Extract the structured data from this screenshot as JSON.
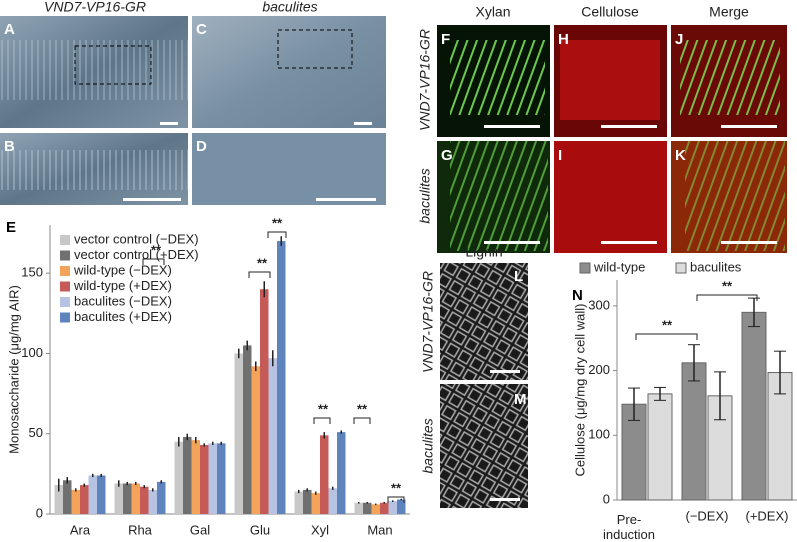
{
  "panels": {
    "left_headers": [
      "VND7-VP16-GR",
      "baculites"
    ],
    "left_letters": [
      "A",
      "B",
      "C",
      "D"
    ],
    "right_headers": [
      "Xylan",
      "Cellulose",
      "Merge"
    ],
    "right_letters": [
      "F",
      "H",
      "J",
      "G",
      "I",
      "K"
    ],
    "right_rows": [
      "VND7-VP16-GR",
      "baculites"
    ],
    "lignin_header": "Lignin",
    "lignin_letters": [
      "L",
      "M"
    ],
    "lignin_rows": [
      "VND7-VP16-GR",
      "baculites"
    ]
  },
  "chart_data": [
    {
      "type": "bar",
      "label": "E",
      "ylabel": "Monosaccharide (μg/mg AIR)",
      "categories": [
        "Ara",
        "Rha",
        "Gal",
        "Glu",
        "Xyl",
        "Man"
      ],
      "series": [
        {
          "name": "vector control (−DEX)",
          "color": "#c8c8c8",
          "values": [
            18,
            19,
            45,
            100,
            14,
            7
          ],
          "errors": [
            4,
            2,
            3,
            3,
            1,
            0.5
          ]
        },
        {
          "name": "vector control (+DEX)",
          "color": "#707070",
          "values": [
            21,
            19,
            48,
            105,
            15,
            7
          ],
          "errors": [
            2,
            1,
            2,
            3,
            1,
            0.5
          ]
        },
        {
          "name": "wild-type (−DEX)",
          "color": "#f3a45a",
          "values": [
            15,
            19,
            46,
            92,
            13,
            6
          ],
          "errors": [
            1,
            1,
            2,
            3,
            1,
            0.5
          ]
        },
        {
          "name": "wild-type (+DEX)",
          "color": "#c65a57",
          "values": [
            18,
            17,
            43,
            140,
            49,
            7
          ],
          "errors": [
            1,
            1,
            1,
            5,
            2,
            0.5
          ]
        },
        {
          "name": "baculites (−DEX)",
          "color": "#b7c3e3",
          "values": [
            24,
            15,
            44,
            97,
            16,
            8
          ],
          "errors": [
            1,
            1,
            1,
            5,
            1,
            0.5
          ]
        },
        {
          "name": "baculites (+DEX)",
          "color": "#5f84bd",
          "values": [
            24,
            20,
            44,
            170,
            51,
            9
          ],
          "errors": [
            1,
            1,
            1,
            3,
            1,
            0.5
          ]
        }
      ],
      "ylim": [
        0,
        180
      ],
      "yticks": [
        0,
        50,
        100,
        150
      ],
      "annotations": [
        "**",
        "**",
        "**",
        "**",
        "**",
        "**"
      ]
    },
    {
      "type": "bar",
      "label": "N",
      "ylabel": "Cellulose (μg/mg dry cell wall)",
      "categories": [
        "Pre-induction",
        "(−DEX)",
        "(+DEX)"
      ],
      "series": [
        {
          "name": "wild-type",
          "color": "#8c8c8c",
          "values": [
            148,
            212,
            290
          ],
          "errors": [
            25,
            28,
            22
          ]
        },
        {
          "name": "baculites",
          "color": "#dcdcdc",
          "values": [
            164,
            161,
            197
          ],
          "errors": [
            10,
            37,
            33
          ]
        }
      ],
      "ylim": [
        0,
        340
      ],
      "yticks": [
        0,
        100,
        200,
        300
      ],
      "annotations": [
        "**",
        "**"
      ]
    }
  ]
}
